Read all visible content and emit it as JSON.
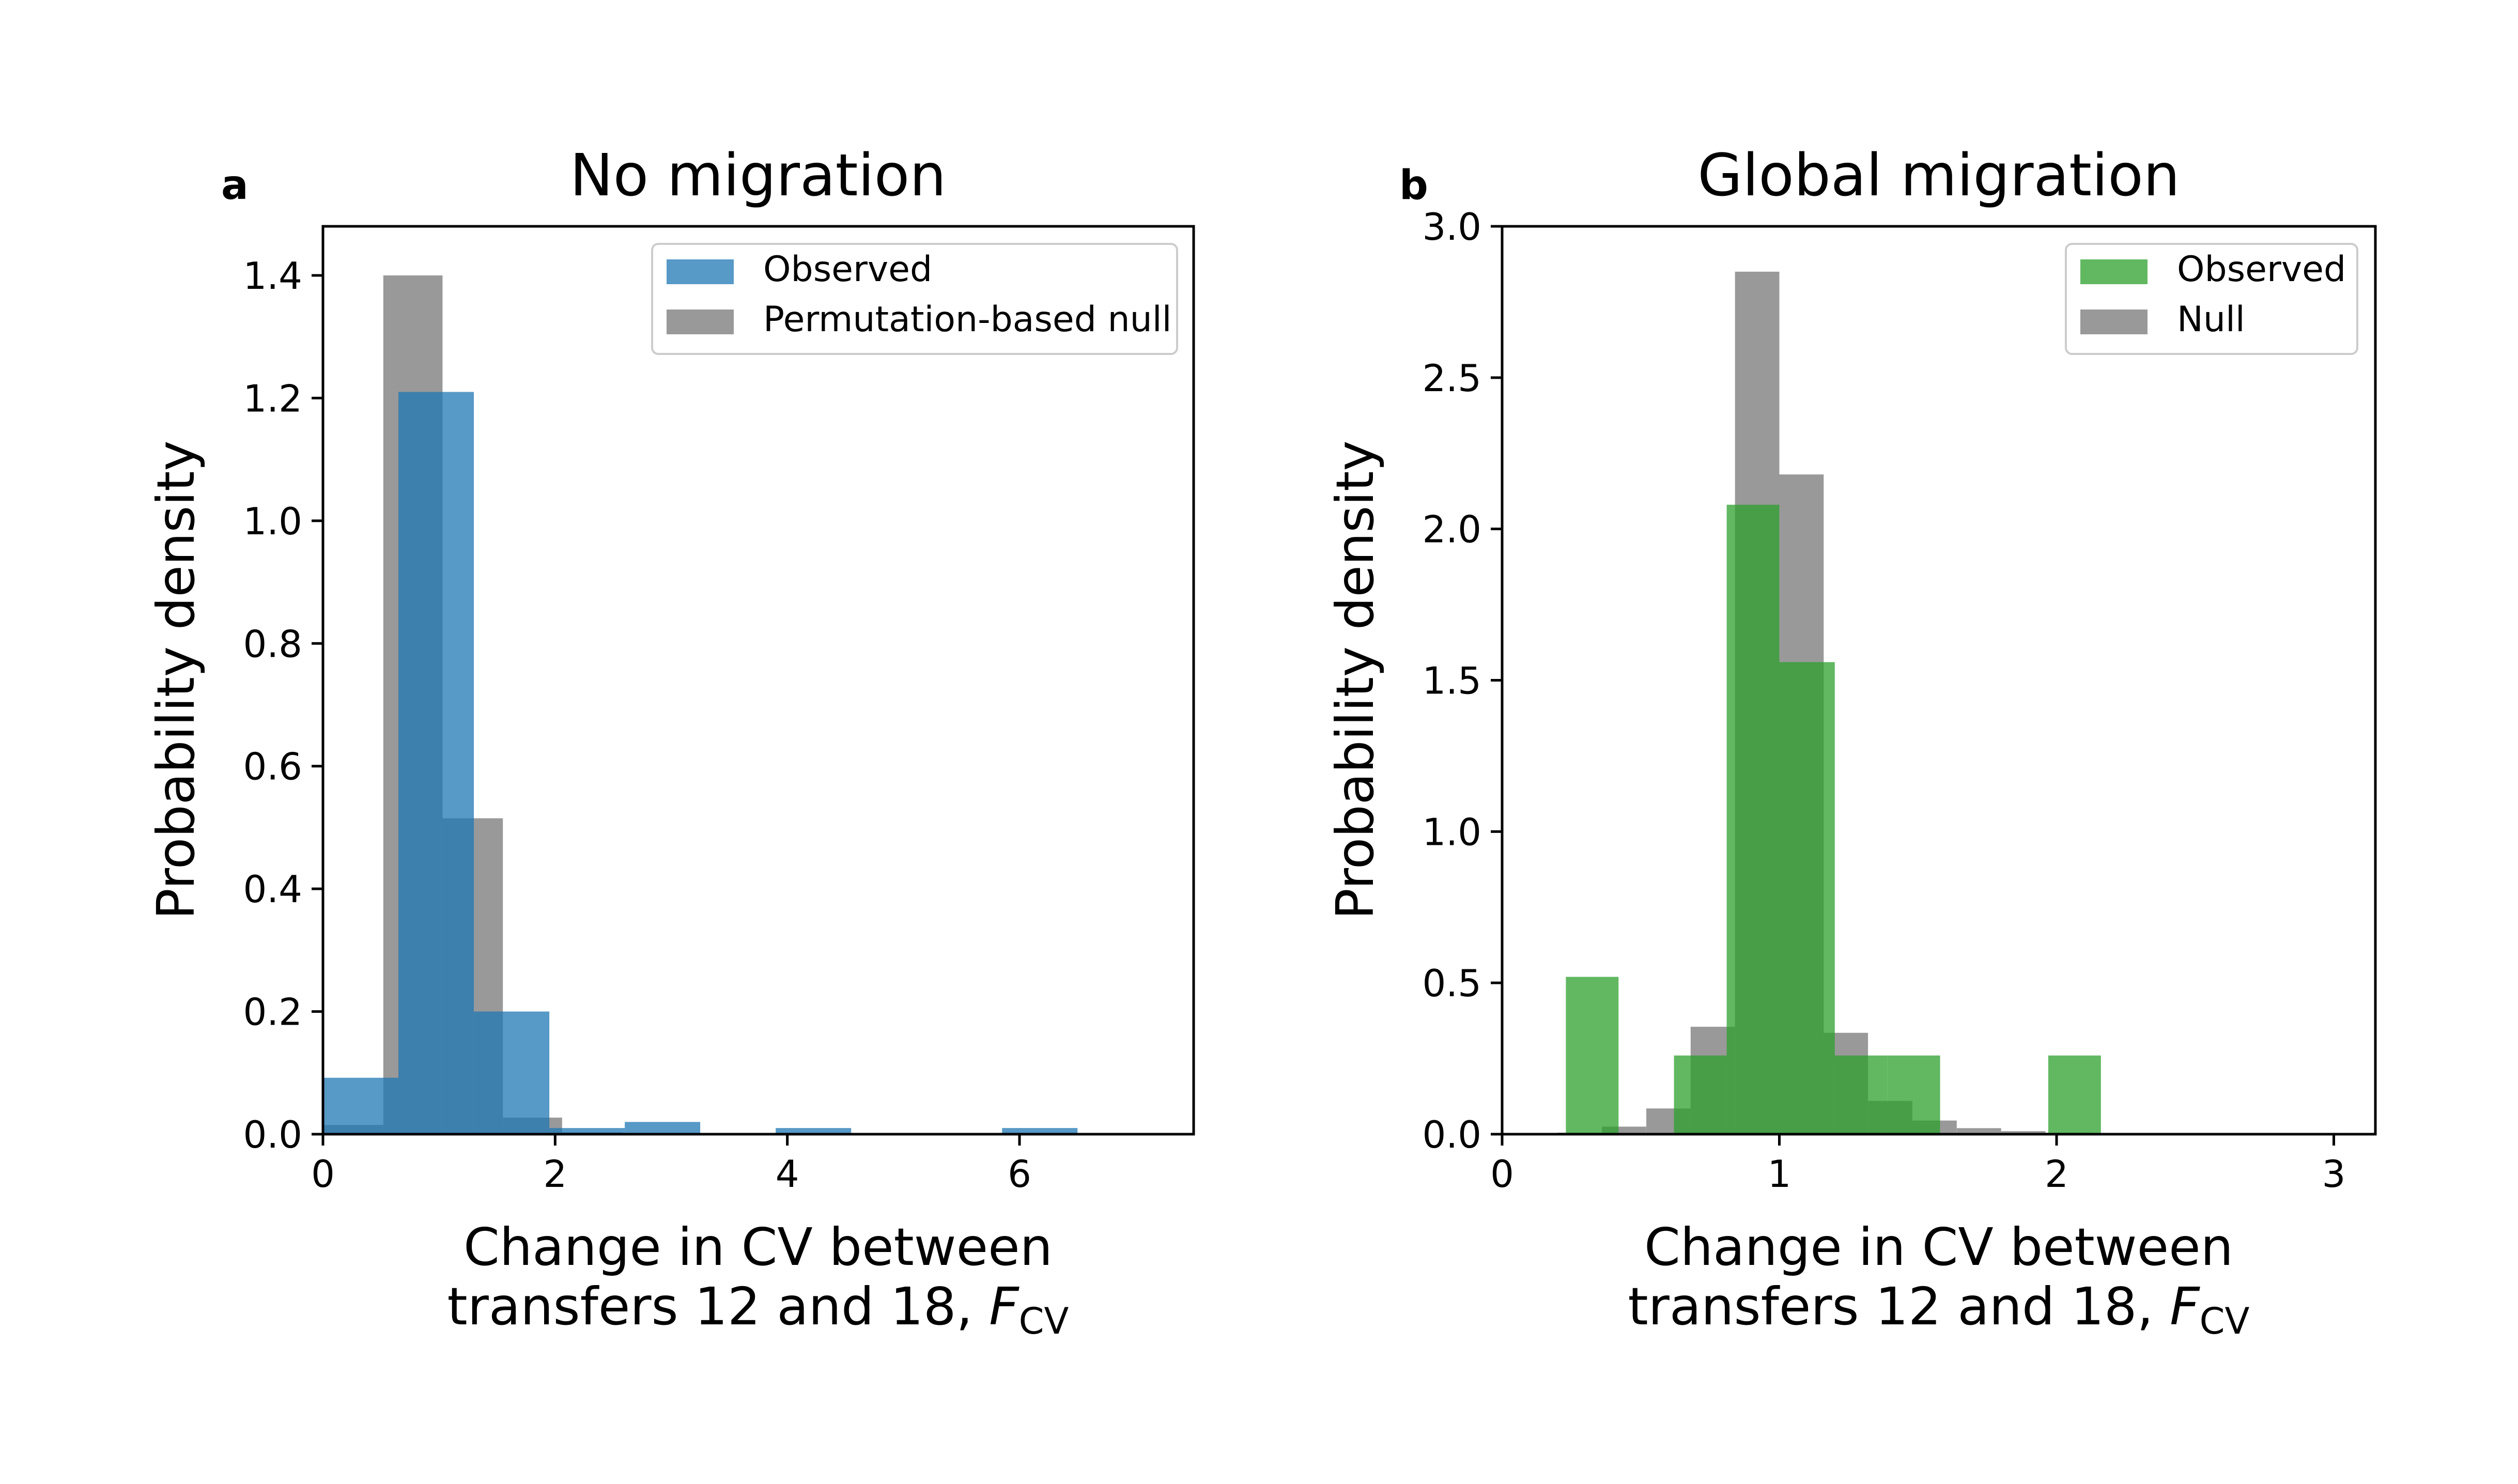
{
  "chart_data": [
    {
      "panel_label": "a",
      "type": "bar",
      "title": "No migration",
      "xlabel_line1": "Change in CV between",
      "xlabel_line2_prefix": "transfers 12 and 18, ",
      "xlabel_symbol": "F",
      "xlabel_subscript": "CV",
      "ylabel": "Probability density",
      "xlim": [
        0,
        7.5
      ],
      "ylim": [
        0,
        1.48
      ],
      "xticks": [
        0,
        2,
        4,
        6
      ],
      "xtick_labels": [
        "0",
        "2",
        "4",
        "6"
      ],
      "yticks": [
        0.0,
        0.2,
        0.4,
        0.6,
        0.8,
        1.0,
        1.2,
        1.4
      ],
      "ytick_labels": [
        "0.0",
        "0.2",
        "0.4",
        "0.6",
        "0.8",
        "1.0",
        "1.2",
        "1.4"
      ],
      "legend": {
        "placement": "top-right",
        "entries": [
          "Observed",
          "Permutation-based null"
        ]
      },
      "series": [
        {
          "name": "Permutation-based null",
          "color": "#808080",
          "opacity": 0.8,
          "bins": [
            {
              "x0": 0.0,
              "x1": 0.52,
              "y": 0.015
            },
            {
              "x0": 0.52,
              "x1": 1.03,
              "y": 1.4
            },
            {
              "x0": 1.03,
              "x1": 1.55,
              "y": 0.515
            },
            {
              "x0": 1.55,
              "x1": 2.06,
              "y": 0.027
            },
            {
              "x0": 2.06,
              "x1": 2.58,
              "y": 0.003
            }
          ]
        },
        {
          "name": "Observed",
          "color": "#1f77b4",
          "opacity": 0.75,
          "bins": [
            {
              "x0": 0.0,
              "x1": 0.65,
              "y": 0.092
            },
            {
              "x0": 0.65,
              "x1": 1.3,
              "y": 1.21
            },
            {
              "x0": 1.3,
              "x1": 1.95,
              "y": 0.2
            },
            {
              "x0": 1.95,
              "x1": 2.6,
              "y": 0.01
            },
            {
              "x0": 2.6,
              "x1": 3.25,
              "y": 0.02
            },
            {
              "x0": 3.9,
              "x1": 4.55,
              "y": 0.01
            },
            {
              "x0": 5.85,
              "x1": 6.5,
              "y": 0.01
            }
          ]
        }
      ]
    },
    {
      "panel_label": "b",
      "type": "bar",
      "title": "Global migration",
      "xlabel_line1": "Change in CV between",
      "xlabel_line2_prefix": "transfers 12 and 18, ",
      "xlabel_symbol": "F",
      "xlabel_subscript": "CV",
      "ylabel": "Probability density",
      "xlim": [
        0,
        3.15
      ],
      "ylim": [
        0,
        3.0
      ],
      "xticks": [
        0,
        1,
        2,
        3
      ],
      "xtick_labels": [
        "0",
        "1",
        "2",
        "3"
      ],
      "yticks": [
        0.0,
        0.5,
        1.0,
        1.5,
        2.0,
        2.5,
        3.0
      ],
      "ytick_labels": [
        "0.0",
        "0.5",
        "1.0",
        "1.5",
        "2.0",
        "2.5",
        "3.0"
      ],
      "legend": {
        "placement": "top-right",
        "entries": [
          "Observed",
          "Null"
        ]
      },
      "series": [
        {
          "name": "Null",
          "color": "#808080",
          "opacity": 0.8,
          "bins": [
            {
              "x0": 0.2,
              "x1": 0.36,
              "y": 0.005
            },
            {
              "x0": 0.36,
              "x1": 0.52,
              "y": 0.025
            },
            {
              "x0": 0.52,
              "x1": 0.68,
              "y": 0.085
            },
            {
              "x0": 0.68,
              "x1": 0.84,
              "y": 0.355
            },
            {
              "x0": 0.84,
              "x1": 1.0,
              "y": 2.85
            },
            {
              "x0": 1.0,
              "x1": 1.16,
              "y": 2.18
            },
            {
              "x0": 1.16,
              "x1": 1.32,
              "y": 0.335
            },
            {
              "x0": 1.32,
              "x1": 1.48,
              "y": 0.11
            },
            {
              "x0": 1.48,
              "x1": 1.64,
              "y": 0.045
            },
            {
              "x0": 1.64,
              "x1": 1.8,
              "y": 0.02
            },
            {
              "x0": 1.8,
              "x1": 1.96,
              "y": 0.01
            },
            {
              "x0": 1.96,
              "x1": 2.12,
              "y": 0.005
            },
            {
              "x0": 2.12,
              "x1": 2.28,
              "y": 0.003
            }
          ]
        },
        {
          "name": "Observed",
          "color": "#2ca02c",
          "opacity": 0.75,
          "bins": [
            {
              "x0": 0.23,
              "x1": 0.42,
              "y": 0.52
            },
            {
              "x0": 0.62,
              "x1": 0.81,
              "y": 0.26
            },
            {
              "x0": 0.81,
              "x1": 1.0,
              "y": 2.08
            },
            {
              "x0": 1.0,
              "x1": 1.2,
              "y": 1.56
            },
            {
              "x0": 1.2,
              "x1": 1.39,
              "y": 0.26
            },
            {
              "x0": 1.39,
              "x1": 1.58,
              "y": 0.26
            },
            {
              "x0": 1.97,
              "x1": 2.16,
              "y": 0.26
            }
          ]
        }
      ]
    }
  ]
}
